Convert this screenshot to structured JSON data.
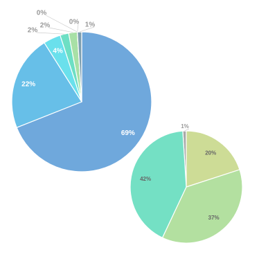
{
  "chart_data": [
    {
      "type": "pie",
      "values": [
        69,
        22,
        4,
        2,
        2,
        0,
        0,
        1
      ],
      "value_labels": [
        "69%",
        "22%",
        "4%",
        "2%",
        "2%",
        "0%",
        "0%",
        "1%"
      ],
      "colors": [
        "#6fa8dc",
        "#67bfe8",
        "#6ae0ec",
        "#6ddfc4",
        "#a8e0a6",
        "#c8e0a0",
        "#d6dc90",
        "#7d9fb0"
      ]
    },
    {
      "type": "pie",
      "values": [
        1,
        20,
        37,
        42
      ],
      "value_labels": [
        "1%",
        "20%",
        "37%",
        "42%"
      ],
      "colors": [
        "#a9a9a9",
        "#cddc96",
        "#b3e0a0",
        "#74e0c4"
      ]
    }
  ]
}
